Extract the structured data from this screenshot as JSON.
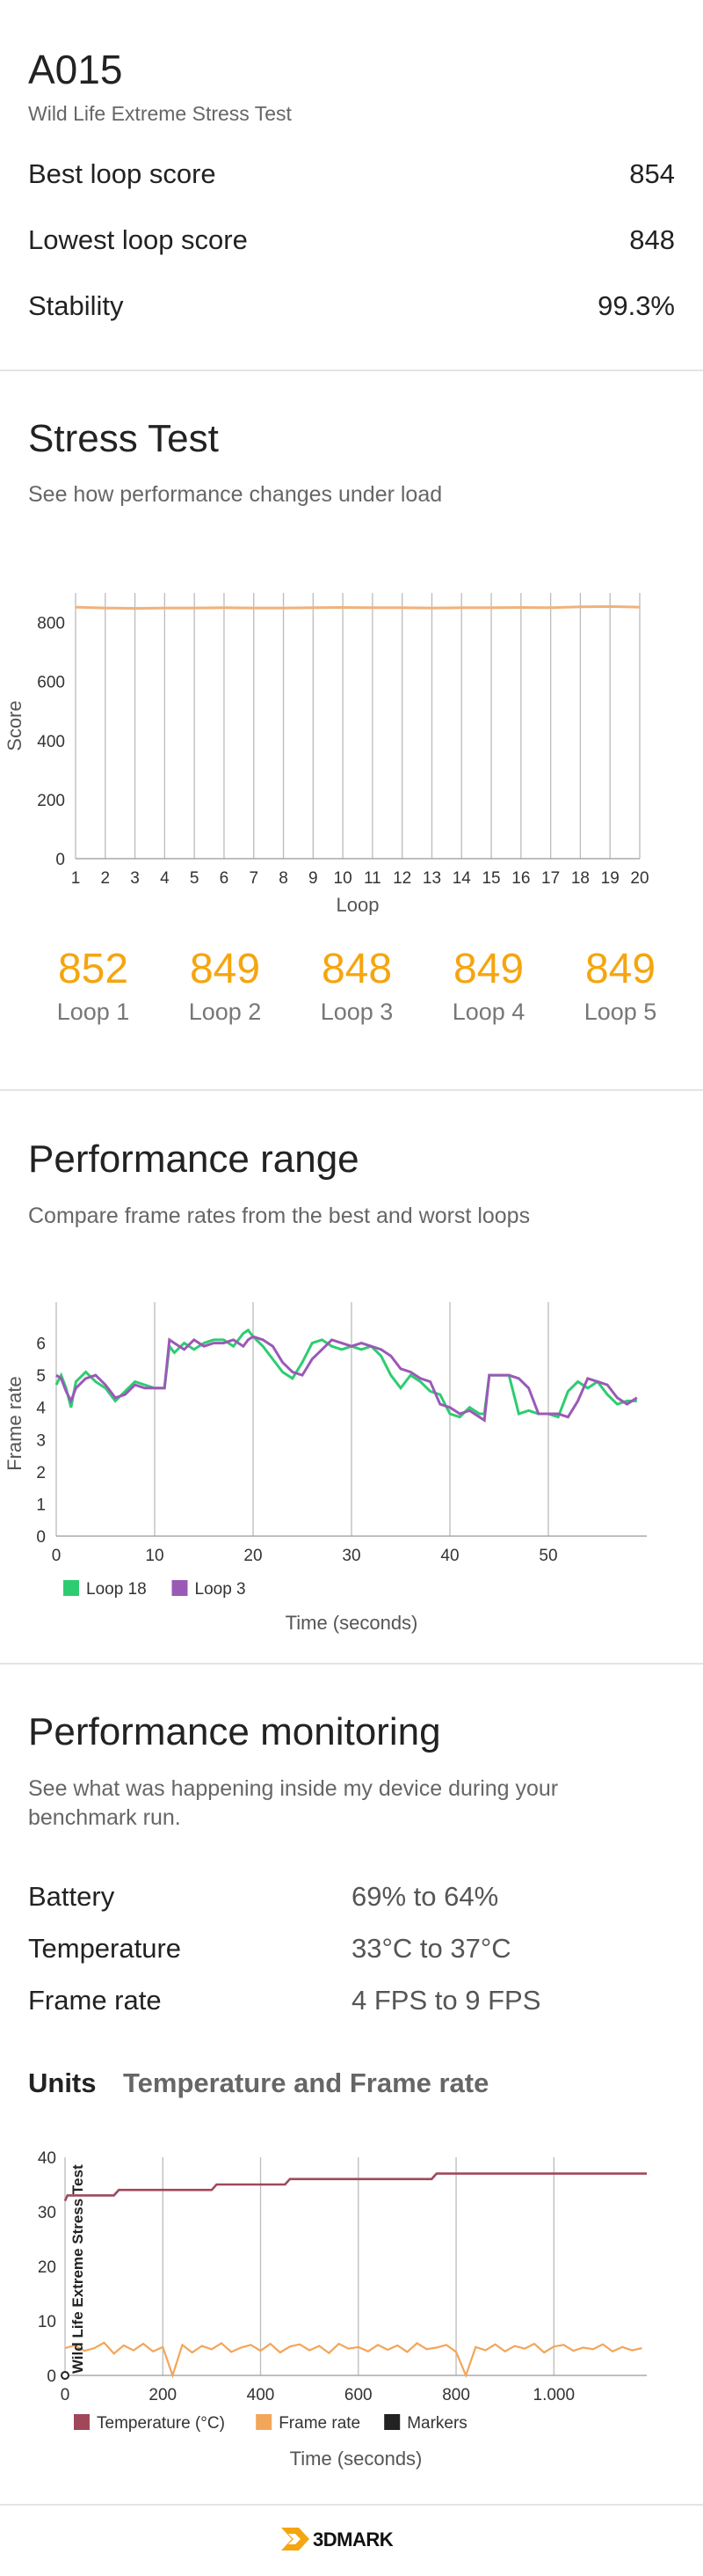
{
  "device": {
    "name": "A015",
    "test_name": "Wild Life Extreme Stress Test"
  },
  "summary": {
    "best_label": "Best loop score",
    "best_value": "854",
    "lowest_label": "Lowest loop score",
    "lowest_value": "848",
    "stability_label": "Stability",
    "stability_value": "99.3%"
  },
  "stress": {
    "title": "Stress Test",
    "subtitle": "See how performance changes under load",
    "loops": [
      {
        "score": "852",
        "label": "Loop 1"
      },
      {
        "score": "849",
        "label": "Loop 2"
      },
      {
        "score": "848",
        "label": "Loop 3"
      },
      {
        "score": "849",
        "label": "Loop 4"
      },
      {
        "score": "849",
        "label": "Loop 5"
      }
    ]
  },
  "performance_range": {
    "title": "Performance range",
    "subtitle": "Compare frame rates from the best and worst loops"
  },
  "monitoring": {
    "title": "Performance monitoring",
    "subtitle_line1": "See what was happening inside my device during your",
    "subtitle_line2": "benchmark run.",
    "rows": [
      {
        "label": "Battery",
        "value": "69% to 64%"
      },
      {
        "label": "Temperature",
        "value": "33°C to 37°C"
      },
      {
        "label": "Frame rate",
        "value": "4 FPS to 9 FPS"
      }
    ],
    "units_label": "Units",
    "units_value": "Temperature and Frame rate"
  },
  "footer": {
    "brand": "3DMARK"
  },
  "colors": {
    "accent": "#f5a50f",
    "loop18": "#2ecc71",
    "loop3": "#9b59b6",
    "temperature": "#a0485a",
    "framerate": "#f2a65a",
    "markers": "#222222"
  },
  "chart_data": [
    {
      "type": "line",
      "xlabel": "Loop",
      "ylabel": "Score",
      "x": [
        1,
        2,
        3,
        4,
        5,
        6,
        7,
        8,
        9,
        10,
        11,
        12,
        13,
        14,
        15,
        16,
        17,
        18,
        19,
        20
      ],
      "series": [
        {
          "values": [
            852,
            849,
            848,
            849,
            849,
            850,
            849,
            849,
            850,
            851,
            850,
            850,
            849,
            850,
            850,
            851,
            850,
            853,
            854,
            852
          ]
        }
      ],
      "xlim": [
        1,
        20
      ],
      "ylim": [
        0,
        900
      ],
      "yticks": [
        0,
        200,
        400,
        600,
        800
      ],
      "grid": "vertical"
    },
    {
      "type": "line",
      "xlabel": "Time (seconds)",
      "ylabel": "Frame rate",
      "xlim": [
        0,
        60
      ],
      "ylim": [
        0,
        7
      ],
      "xticks": [
        0,
        10,
        20,
        30,
        40,
        50
      ],
      "yticks": [
        0,
        1,
        2,
        3,
        4,
        5,
        6
      ],
      "legend": "bottom-left",
      "series": [
        {
          "name": "Loop 18",
          "x": [
            0,
            0.5,
            1,
            1.5,
            2,
            3,
            4,
            5,
            6,
            7,
            8,
            9,
            10,
            11,
            11.5,
            12,
            13,
            14,
            15,
            16,
            17,
            18,
            19,
            19.5,
            20,
            21,
            22,
            23,
            24,
            25,
            26,
            27,
            28,
            29,
            30,
            31,
            32,
            33,
            34,
            35,
            36,
            37,
            38,
            39,
            40,
            41,
            42,
            43,
            43.5,
            44,
            45,
            46,
            47,
            48,
            49,
            50,
            51,
            52,
            53,
            54,
            55,
            56,
            57,
            58,
            59
          ],
          "values": [
            4.7,
            5.0,
            4.6,
            4.0,
            4.8,
            5.1,
            4.8,
            4.6,
            4.2,
            4.5,
            4.8,
            4.7,
            4.6,
            4.6,
            5.9,
            5.7,
            6.0,
            5.8,
            6.0,
            6.1,
            6.1,
            5.9,
            6.3,
            6.4,
            6.2,
            5.9,
            5.5,
            5.1,
            4.9,
            5.4,
            6.0,
            6.1,
            5.9,
            5.8,
            5.9,
            5.8,
            5.9,
            5.6,
            5.0,
            4.6,
            5.0,
            4.8,
            4.5,
            4.4,
            3.8,
            3.7,
            4.0,
            3.8,
            3.8,
            5.0,
            5.0,
            5.0,
            3.8,
            3.9,
            3.8,
            3.8,
            3.7,
            4.5,
            4.8,
            4.6,
            4.8,
            4.4,
            4.1,
            4.2,
            4.2
          ]
        },
        {
          "name": "Loop 3",
          "x": [
            0,
            0.5,
            1,
            1.5,
            2,
            3,
            4,
            5,
            6,
            7,
            8,
            9,
            10,
            11,
            11.5,
            12,
            13,
            14,
            15,
            16,
            17,
            18,
            19,
            19.5,
            20,
            21,
            22,
            23,
            24,
            25,
            26,
            27,
            28,
            29,
            30,
            31,
            32,
            33,
            34,
            35,
            36,
            37,
            38,
            39,
            40,
            41,
            42,
            43,
            43.5,
            44,
            45,
            46,
            47,
            48,
            49,
            50,
            51,
            52,
            53,
            54,
            55,
            56,
            57,
            58,
            59
          ],
          "values": [
            5.0,
            4.9,
            4.5,
            4.2,
            4.6,
            4.9,
            5.0,
            4.7,
            4.3,
            4.4,
            4.7,
            4.6,
            4.6,
            4.6,
            6.1,
            6.0,
            5.8,
            6.1,
            5.9,
            6.0,
            6.0,
            6.1,
            5.9,
            6.1,
            6.2,
            6.1,
            5.9,
            5.4,
            5.1,
            5.0,
            5.5,
            5.8,
            6.1,
            6.0,
            5.9,
            6.0,
            5.9,
            5.8,
            5.6,
            5.2,
            5.1,
            4.9,
            4.8,
            4.1,
            4.0,
            3.8,
            3.9,
            3.7,
            3.6,
            5.0,
            5.0,
            5.0,
            4.9,
            4.6,
            3.8,
            3.8,
            3.8,
            3.7,
            4.2,
            4.9,
            4.8,
            4.7,
            4.3,
            4.1,
            4.3
          ]
        }
      ]
    },
    {
      "type": "line",
      "xlabel": "Time (seconds)",
      "xlim": [
        0,
        1190
      ],
      "ylim": [
        0,
        40
      ],
      "xticks": [
        0,
        200,
        400,
        600,
        800,
        1000
      ],
      "xticklabels": [
        "0",
        "200",
        "400",
        "600",
        "800",
        "1.000"
      ],
      "yticks": [
        0,
        10,
        20,
        30,
        40
      ],
      "annotations": [
        "Wild Life Extreme Stress Test"
      ],
      "legend": "bottom-left",
      "series": [
        {
          "name": "Temperature (°C)",
          "x": [
            0,
            5,
            10,
            100,
            110,
            300,
            310,
            450,
            460,
            750,
            760,
            1190
          ],
          "values": [
            32,
            33,
            33,
            33,
            34,
            34,
            35,
            35,
            36,
            36,
            37,
            37
          ]
        },
        {
          "name": "Frame rate",
          "x": [
            0,
            20,
            40,
            60,
            80,
            100,
            120,
            140,
            160,
            180,
            200,
            220,
            240,
            260,
            280,
            300,
            320,
            340,
            360,
            380,
            400,
            420,
            440,
            460,
            480,
            500,
            520,
            540,
            560,
            580,
            600,
            620,
            640,
            660,
            680,
            700,
            720,
            740,
            760,
            780,
            800,
            820,
            840,
            860,
            880,
            900,
            920,
            940,
            960,
            980,
            1000,
            1020,
            1040,
            1060,
            1080,
            1100,
            1120,
            1140,
            1160,
            1180
          ],
          "values": [
            5,
            5.5,
            4.5,
            5,
            6,
            4,
            5.5,
            4.6,
            5.8,
            4.4,
            5.2,
            0,
            5.6,
            4.2,
            5.4,
            4.8,
            5.9,
            4.3,
            5.1,
            5.6,
            4.5,
            5.8,
            4.2,
            5.3,
            5.7,
            4.6,
            5.4,
            4.1,
            5.8,
            4.9,
            5.2,
            4.4,
            5.6,
            4.7,
            5.5,
            4.3,
            5.9,
            4.8,
            5.1,
            5.6,
            4.3,
            0,
            5.2,
            4.6,
            5.7,
            4.4,
            5.4,
            4.9,
            5.8,
            4.2,
            5.3,
            5.6,
            4.5,
            5.1,
            4.8,
            5.7,
            4.4,
            5.2,
            4.6,
            5
          ]
        },
        {
          "name": "Markers",
          "x": [
            0
          ],
          "values": [
            0
          ]
        }
      ]
    }
  ]
}
